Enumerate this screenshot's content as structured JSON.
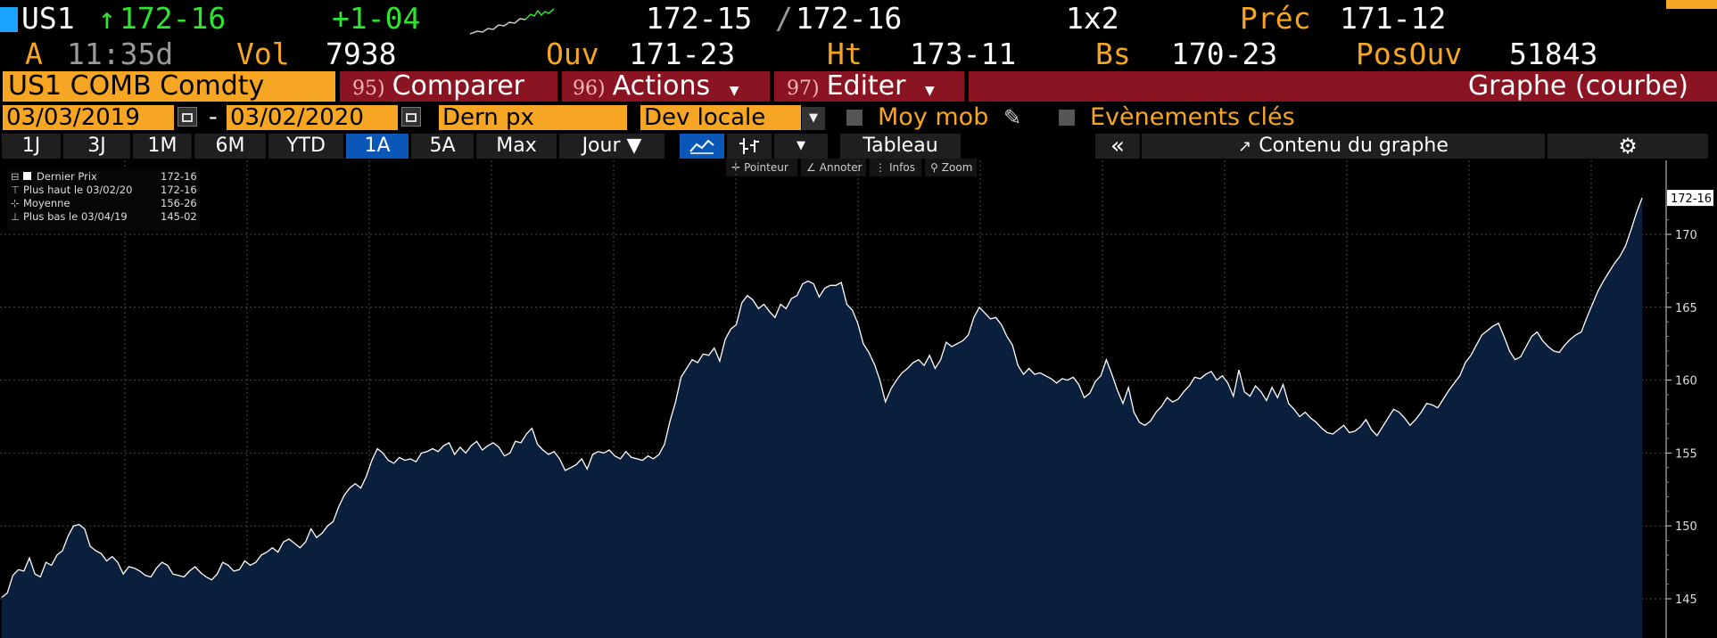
{
  "header": {
    "ticker": "US1",
    "arrow": "↑",
    "last": "172-16",
    "change": "+1-04",
    "bid": "172-15",
    "ask": "172-16",
    "size": "1x2",
    "prev_label": "Préc",
    "prev_value": "171-12",
    "a_label": "A",
    "time": "11:35d",
    "vol_label": "Vol",
    "vol_value": "7938",
    "open_label": "Ouv",
    "open_value": "171-23",
    "high_label": "Ht",
    "high_value": "173-11",
    "low_label": "Bs",
    "low_value": "170-23",
    "oi_label": "PosOuv",
    "oi_value": "51843"
  },
  "toolbar": {
    "security": "US1 COMB Comdty",
    "compare_num": "95)",
    "compare_label": "Comparer",
    "actions_num": "96)",
    "actions_label": "Actions",
    "edit_num": "97)",
    "edit_label": "Editer",
    "chart_type": "Graphe (courbe)"
  },
  "settings": {
    "start_date": "03/03/2019",
    "dash": "-",
    "end_date": "03/02/2020",
    "field": "Dern px",
    "currency": "Dev locale",
    "moving_avg": "Moy mob",
    "key_events": "Evènements clés"
  },
  "periods": {
    "p1": "1J",
    "p2": "3J",
    "p3": "1M",
    "p4": "6M",
    "p5": "YTD",
    "p6": "1A",
    "p7": "5A",
    "p8": "Max",
    "interval": "Jour ▼",
    "table": "Tableau",
    "contents": "Contenu du graphe"
  },
  "tools": {
    "pointer": "Pointeur",
    "annotate": "Annoter",
    "info": "Infos",
    "zoom": "Zoom"
  },
  "legend": {
    "last_label": "Dernier Prix",
    "last_value": "172-16",
    "high_label": "Plus haut le 03/02/20",
    "high_value": "172-16",
    "avg_label": "Moyenne",
    "avg_value": "156-26",
    "low_label": "Plus bas le 03/04/19",
    "low_value": "145-02"
  },
  "colors": {
    "orange": "#f6a623",
    "green": "#2ee62e",
    "red_bar": "#8b1422",
    "area_fill": "#0a1f3c",
    "line": "#ffffff"
  },
  "chart_data": {
    "type": "area",
    "y_ticks": [
      145,
      150,
      155,
      160,
      165,
      170
    ],
    "ylim": [
      144.5,
      172.8
    ],
    "last_label": "172-16",
    "values": [
      145.1,
      145.4,
      146.6,
      147.0,
      146.9,
      147.8,
      146.7,
      146.5,
      147.5,
      147.3,
      148.0,
      148.3,
      149.3,
      150.0,
      150.1,
      149.8,
      148.6,
      148.3,
      148.1,
      147.6,
      147.9,
      147.5,
      146.7,
      147.2,
      147.1,
      146.9,
      146.6,
      146.5,
      147.1,
      147.5,
      147.3,
      146.7,
      146.6,
      146.5,
      146.9,
      147.2,
      146.8,
      146.5,
      146.3,
      146.7,
      147.5,
      147.3,
      146.9,
      147.0,
      147.6,
      147.3,
      147.5,
      148.0,
      148.2,
      148.5,
      148.2,
      148.9,
      149.1,
      148.8,
      148.5,
      148.9,
      149.8,
      149.2,
      149.5,
      150.0,
      150.3,
      151.3,
      152.1,
      152.6,
      152.9,
      152.6,
      153.4,
      154.5,
      155.3,
      155.0,
      154.5,
      154.3,
      154.7,
      154.5,
      154.6,
      154.4,
      155.0,
      155.1,
      155.3,
      155.1,
      155.5,
      155.7,
      154.9,
      155.4,
      155.0,
      155.5,
      155.8,
      155.2,
      155.5,
      155.7,
      155.4,
      154.8,
      155.0,
      155.8,
      155.7,
      156.3,
      156.7,
      155.6,
      155.2,
      154.9,
      155.1,
      154.6,
      153.8,
      154.0,
      154.2,
      154.6,
      153.9,
      154.9,
      155.1,
      155.0,
      155.2,
      154.8,
      154.6,
      155.1,
      154.7,
      154.6,
      154.5,
      154.8,
      154.6,
      154.9,
      155.6,
      157.2,
      158.5,
      160.2,
      160.8,
      161.4,
      161.2,
      161.8,
      161.7,
      162.2,
      161.3,
      162.8,
      163.5,
      163.8,
      165.3,
      165.8,
      165.5,
      164.9,
      165.2,
      164.7,
      164.3,
      165.2,
      164.9,
      165.6,
      165.8,
      166.6,
      166.8,
      166.6,
      165.7,
      166.3,
      166.5,
      166.5,
      166.7,
      165.2,
      164.8,
      163.9,
      162.5,
      161.9,
      161.1,
      160.0,
      158.5,
      159.4,
      160.0,
      160.5,
      160.8,
      161.2,
      161.4,
      161.0,
      161.7,
      160.8,
      161.4,
      162.6,
      162.3,
      162.5,
      162.7,
      163.1,
      164.3,
      165.0,
      164.6,
      164.2,
      164.3,
      163.8,
      163.0,
      162.4,
      161.0,
      160.4,
      160.8,
      160.4,
      160.5,
      160.3,
      160.1,
      159.8,
      160.1,
      160.0,
      160.2,
      159.7,
      158.8,
      159.1,
      159.9,
      160.3,
      161.4,
      160.4,
      159.3,
      158.4,
      159.5,
      157.8,
      157.1,
      156.9,
      157.2,
      157.8,
      158.2,
      158.8,
      158.5,
      158.7,
      159.2,
      159.6,
      160.2,
      160.1,
      160.4,
      160.6,
      160.0,
      160.3,
      159.8,
      158.9,
      160.7,
      159.2,
      158.9,
      159.6,
      159.2,
      158.6,
      159.5,
      158.8,
      159.7,
      158.4,
      158.0,
      157.5,
      157.8,
      157.4,
      157.1,
      156.7,
      156.4,
      156.3,
      156.6,
      156.9,
      156.4,
      156.5,
      156.8,
      157.3,
      156.6,
      156.2,
      156.8,
      157.4,
      158.0,
      157.8,
      157.4,
      156.9,
      157.3,
      157.8,
      158.4,
      158.3,
      158.1,
      158.7,
      159.3,
      159.8,
      160.3,
      161.2,
      161.7,
      162.4,
      163.1,
      163.4,
      163.7,
      163.9,
      163.0,
      162.0,
      161.4,
      161.6,
      162.3,
      163.0,
      163.3,
      162.7,
      162.3,
      162.0,
      161.9,
      162.4,
      162.8,
      163.1,
      163.3,
      164.3,
      165.2,
      166.1,
      166.8,
      167.4,
      168.0,
      168.5,
      169.2,
      170.3,
      171.5,
      172.5
    ]
  }
}
